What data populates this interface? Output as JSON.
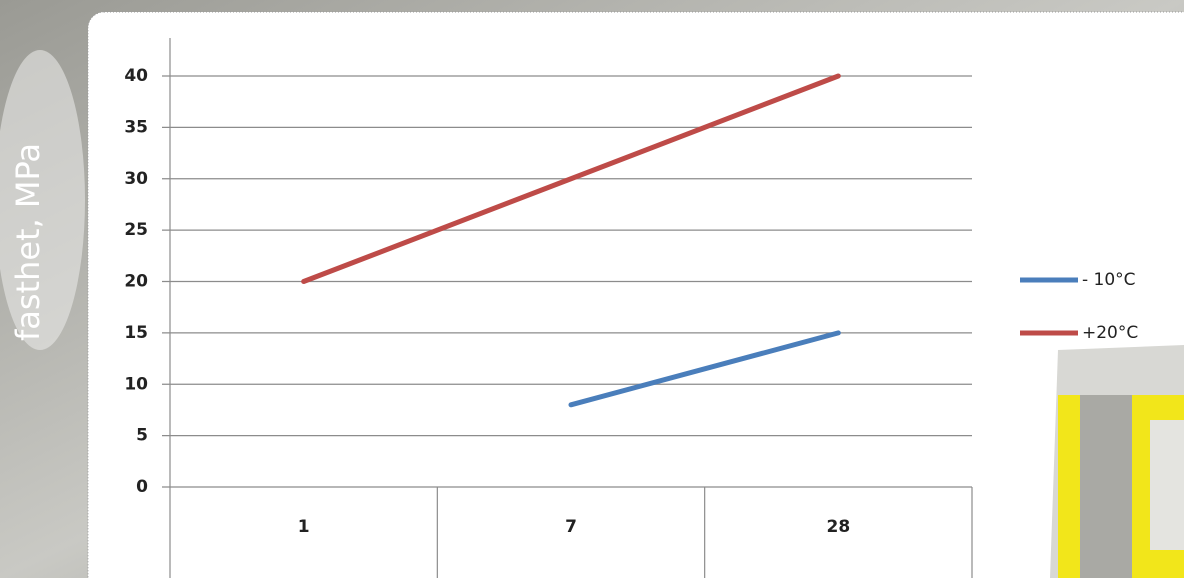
{
  "chart_data": {
    "type": "line",
    "y_label": "fasthet, MPa",
    "categories": [
      "1",
      "7",
      "28"
    ],
    "series": [
      {
        "name": "- 10°C",
        "color": "#4a7ebb",
        "values": [
          null,
          8,
          15
        ]
      },
      {
        "name": "+20°C",
        "color": "#be4b48",
        "values": [
          20,
          30,
          40
        ]
      }
    ],
    "ylim": [
      0,
      40
    ],
    "yticks": [
      0,
      5,
      10,
      15,
      20,
      25,
      30,
      35,
      40
    ],
    "grid": true,
    "legend": "right"
  }
}
